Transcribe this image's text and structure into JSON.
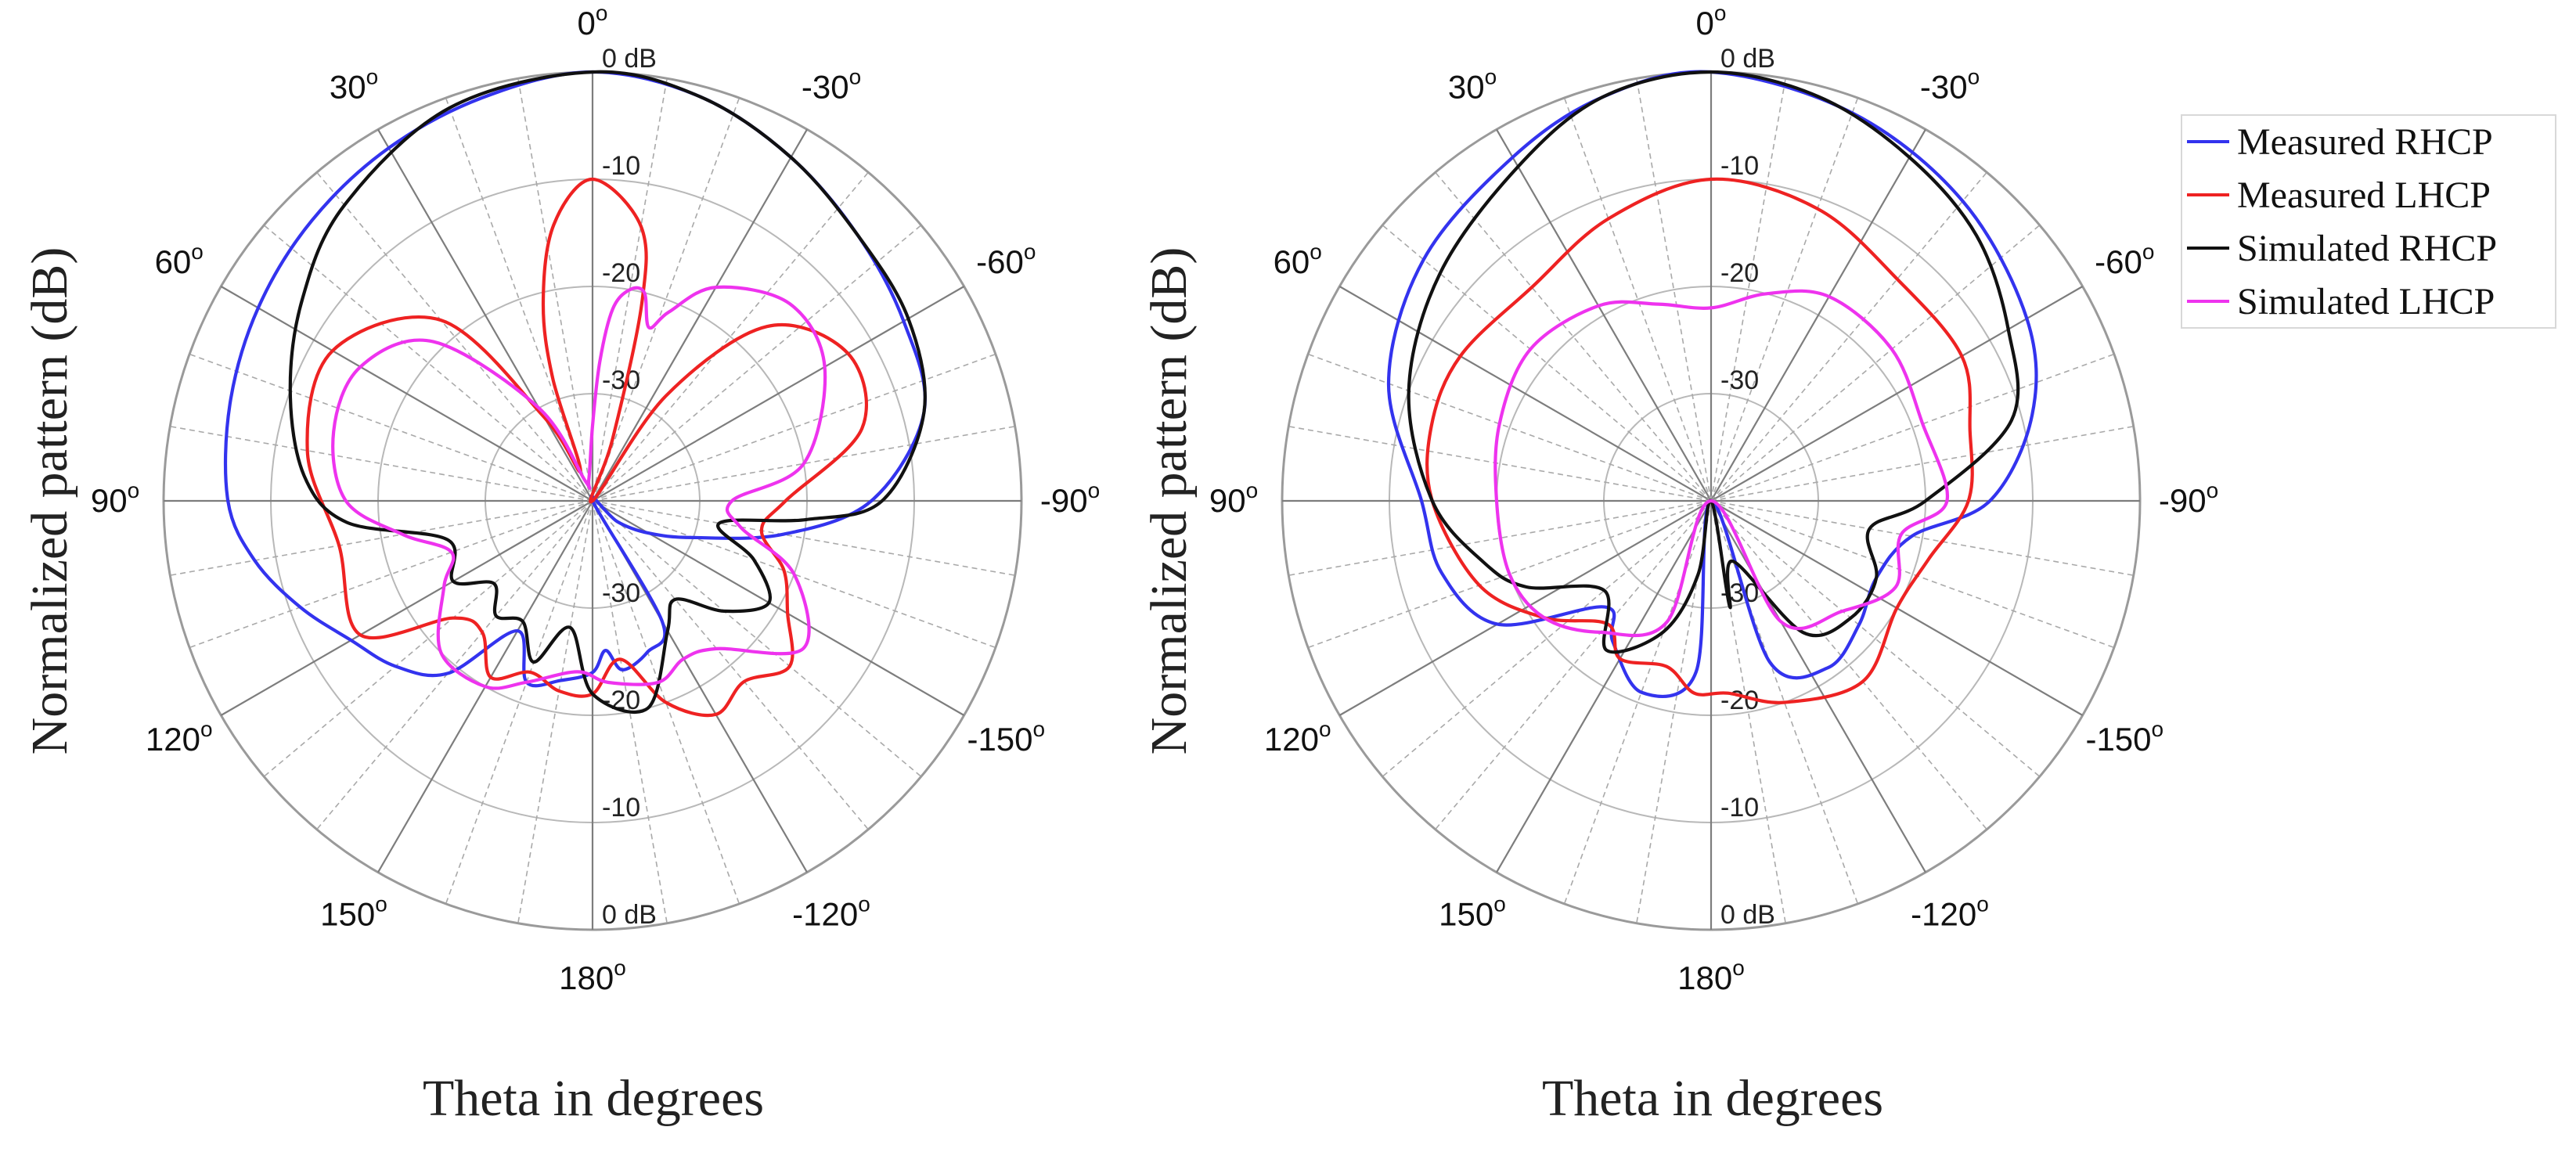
{
  "chart_data": [
    {
      "type": "polar-line",
      "panel": "left",
      "ylabel": "Normalized pattern (dB)",
      "xlabel": "Theta in degrees",
      "r_range_db": [
        -40,
        0
      ],
      "radial_ticks_upper": [
        "0 dB",
        "-10",
        "-20",
        "-30"
      ],
      "radial_ticks_lower": [
        "-30",
        "-20",
        "-10",
        "0 dB"
      ],
      "angle_labels": [
        {
          "deg": 0,
          "text": "0"
        },
        {
          "deg": 30,
          "text": "-30"
        },
        {
          "deg": 60,
          "text": "-60"
        },
        {
          "deg": 90,
          "text": "-90"
        },
        {
          "deg": 120,
          "text": "-150"
        },
        {
          "deg": 150,
          "text": "-120"
        },
        {
          "deg": 180,
          "text": "180"
        },
        {
          "deg": 210,
          "text": "150"
        },
        {
          "deg": 240,
          "text": "120"
        },
        {
          "deg": 270,
          "text": "90"
        },
        {
          "deg": 300,
          "text": "60"
        },
        {
          "deg": 330,
          "text": "30"
        }
      ],
      "series": [
        {
          "name": "Measured RHCP",
          "color": "#3333ee",
          "points": [
            [
              0,
              0
            ],
            [
              15,
              -1
            ],
            [
              30,
              -3
            ],
            [
              45,
              -5
            ],
            [
              60,
              -6.5
            ],
            [
              75,
              -8
            ],
            [
              90,
              -14
            ],
            [
              100,
              -22
            ],
            [
              110,
              -30
            ],
            [
              120,
              -34
            ],
            [
              130,
              -37
            ],
            [
              140,
              -40
            ],
            [
              150,
              -27
            ],
            [
              160,
              -25
            ],
            [
              170,
              -24
            ],
            [
              175,
              -26
            ],
            [
              180,
              -24
            ],
            [
              190,
              -23
            ],
            [
              200,
              -22
            ],
            [
              210,
              -26
            ],
            [
              220,
              -19
            ],
            [
              230,
              -16
            ],
            [
              240,
              -14
            ],
            [
              250,
              -11
            ],
            [
              260,
              -8
            ],
            [
              270,
              -6
            ],
            [
              285,
              -5
            ],
            [
              300,
              -4
            ],
            [
              315,
              -3
            ],
            [
              330,
              -2
            ],
            [
              345,
              -1
            ],
            [
              360,
              0
            ]
          ]
        },
        {
          "name": "Measured LHCP",
          "color": "#ee2222",
          "points": [
            [
              0,
              -10
            ],
            [
              10,
              -14
            ],
            [
              14,
              -21
            ],
            [
              18,
              -34
            ],
            [
              25,
              -40
            ],
            [
              35,
              -28
            ],
            [
              45,
              -17
            ],
            [
              60,
              -12.5
            ],
            [
              75,
              -14
            ],
            [
              90,
              -22
            ],
            [
              100,
              -24
            ],
            [
              110,
              -21
            ],
            [
              120,
              -19
            ],
            [
              130,
              -16
            ],
            [
              140,
              -18
            ],
            [
              150,
              -17
            ],
            [
              160,
              -20
            ],
            [
              170,
              -25
            ],
            [
              180,
              -22
            ],
            [
              190,
              -22
            ],
            [
              200,
              -23
            ],
            [
              210,
              -21
            ],
            [
              220,
              -24
            ],
            [
              230,
              -23
            ],
            [
              240,
              -15
            ],
            [
              260,
              -16
            ],
            [
              280,
              -13
            ],
            [
              300,
              -12
            ],
            [
              320,
              -18
            ],
            [
              330,
              -31
            ],
            [
              338,
              -37
            ],
            [
              342,
              -28
            ],
            [
              346,
              -21
            ],
            [
              352,
              -14
            ],
            [
              360,
              -10
            ]
          ]
        },
        {
          "name": "Simulated RHCP",
          "color": "#111111",
          "points": [
            [
              0,
              0
            ],
            [
              15,
              -1
            ],
            [
              30,
              -3
            ],
            [
              45,
              -5
            ],
            [
              60,
              -6
            ],
            [
              75,
              -8
            ],
            [
              90,
              -13
            ],
            [
              95,
              -20
            ],
            [
              100,
              -28
            ],
            [
              110,
              -24
            ],
            [
              120,
              -21
            ],
            [
              130,
              -24
            ],
            [
              140,
              -28
            ],
            [
              150,
              -26
            ],
            [
              165,
              -20
            ],
            [
              180,
              -22
            ],
            [
              190,
              -28
            ],
            [
              200,
              -24
            ],
            [
              210,
              -27
            ],
            [
              220,
              -26
            ],
            [
              230,
              -28
            ],
            [
              240,
              -25
            ],
            [
              255,
              -26
            ],
            [
              265,
              -17
            ],
            [
              275,
              -13
            ],
            [
              290,
              -10
            ],
            [
              305,
              -7
            ],
            [
              320,
              -4
            ],
            [
              340,
              -1
            ],
            [
              360,
              0
            ]
          ]
        },
        {
          "name": "Simulated LHCP",
          "color": "#ee33ee",
          "points": [
            [
              0,
              -33
            ],
            [
              3,
              -27
            ],
            [
              6,
              -22
            ],
            [
              10,
              -20
            ],
            [
              14,
              -20
            ],
            [
              18,
              -23
            ],
            [
              22,
              -21
            ],
            [
              30,
              -17
            ],
            [
              45,
              -14
            ],
            [
              60,
              -15
            ],
            [
              80,
              -20
            ],
            [
              90,
              -27
            ],
            [
              100,
              -26
            ],
            [
              110,
              -20
            ],
            [
              125,
              -16
            ],
            [
              140,
              -22
            ],
            [
              150,
              -23
            ],
            [
              160,
              -22
            ],
            [
              175,
              -23
            ],
            [
              185,
              -24
            ],
            [
              200,
              -22
            ],
            [
              210,
              -20
            ],
            [
              225,
              -20
            ],
            [
              240,
              -24
            ],
            [
              250,
              -26
            ],
            [
              260,
              -22
            ],
            [
              270,
              -17
            ],
            [
              285,
              -15
            ],
            [
              300,
              -15
            ],
            [
              315,
              -19
            ],
            [
              330,
              -30
            ],
            [
              340,
              -38
            ],
            [
              350,
              -38
            ],
            [
              360,
              -33
            ]
          ]
        }
      ]
    },
    {
      "type": "polar-line",
      "panel": "right",
      "ylabel": "Normalized pattern (dB)",
      "xlabel": "Theta in degrees",
      "r_range_db": [
        -40,
        0
      ],
      "radial_ticks_upper": [
        "0 dB",
        "-10",
        "-20",
        "-30"
      ],
      "radial_ticks_lower": [
        "-30",
        "-20",
        "-10",
        "0 dB"
      ],
      "angle_labels": [
        {
          "deg": 0,
          "text": "0"
        },
        {
          "deg": 30,
          "text": "-30"
        },
        {
          "deg": 60,
          "text": "-60"
        },
        {
          "deg": 90,
          "text": "-90"
        },
        {
          "deg": 120,
          "text": "-150"
        },
        {
          "deg": 150,
          "text": "-120"
        },
        {
          "deg": 180,
          "text": "180"
        },
        {
          "deg": 210,
          "text": "150"
        },
        {
          "deg": 240,
          "text": "120"
        },
        {
          "deg": 270,
          "text": "90"
        },
        {
          "deg": 300,
          "text": "60"
        },
        {
          "deg": 330,
          "text": "30"
        }
      ],
      "series": [
        {
          "name": "Measured RHCP",
          "color": "#3333ee",
          "points": [
            [
              0,
              0
            ],
            [
              20,
              -1.5
            ],
            [
              40,
              -3.5
            ],
            [
              60,
              -6
            ],
            [
              75,
              -9
            ],
            [
              90,
              -14
            ],
            [
              100,
              -21
            ],
            [
              115,
              -23
            ],
            [
              130,
              -22
            ],
            [
              145,
              -21
            ],
            [
              160,
              -24
            ],
            [
              170,
              -40
            ],
            [
              185,
              -24
            ],
            [
              200,
              -21
            ],
            [
              215,
              -24
            ],
            [
              225,
              -26
            ],
            [
              240,
              -17
            ],
            [
              255,
              -14
            ],
            [
              270,
              -13
            ],
            [
              290,
              -8
            ],
            [
              310,
              -5
            ],
            [
              330,
              -3
            ],
            [
              345,
              -1
            ],
            [
              360,
              0
            ]
          ]
        },
        {
          "name": "Measured LHCP",
          "color": "#ee2222",
          "points": [
            [
              0,
              -10
            ],
            [
              20,
              -11
            ],
            [
              40,
              -13
            ],
            [
              60,
              -13
            ],
            [
              75,
              -15
            ],
            [
              90,
              -16
            ],
            [
              105,
              -19
            ],
            [
              120,
              -20
            ],
            [
              140,
              -18
            ],
            [
              160,
              -20
            ],
            [
              175,
              -22
            ],
            [
              185,
              -22
            ],
            [
              195,
              -24
            ],
            [
              210,
              -23
            ],
            [
              220,
              -25
            ],
            [
              235,
              -21
            ],
            [
              250,
              -17
            ],
            [
              270,
              -14
            ],
            [
              285,
              -13
            ],
            [
              300,
              -13
            ],
            [
              320,
              -14
            ],
            [
              340,
              -12
            ],
            [
              360,
              -10
            ]
          ]
        },
        {
          "name": "Simulated RHCP",
          "color": "#111111",
          "points": [
            [
              0,
              0
            ],
            [
              15,
              -1
            ],
            [
              30,
              -3
            ],
            [
              45,
              -5
            ],
            [
              60,
              -8
            ],
            [
              75,
              -11
            ],
            [
              90,
              -20
            ],
            [
              100,
              -25
            ],
            [
              115,
              -23
            ],
            [
              130,
              -23
            ],
            [
              145,
              -25
            ],
            [
              160,
              -34
            ],
            [
              170,
              -30
            ],
            [
              180,
              -40
            ],
            [
              190,
              -33
            ],
            [
              200,
              -27
            ],
            [
              215,
              -23
            ],
            [
              230,
              -27
            ],
            [
              245,
              -21
            ],
            [
              255,
              -18
            ],
            [
              270,
              -14
            ],
            [
              290,
              -10
            ],
            [
              310,
              -7
            ],
            [
              330,
              -4
            ],
            [
              345,
              -1
            ],
            [
              360,
              0
            ]
          ]
        },
        {
          "name": "Simulated LHCP",
          "color": "#ee33ee",
          "points": [
            [
              0,
              -22
            ],
            [
              15,
              -20
            ],
            [
              30,
              -18
            ],
            [
              50,
              -18
            ],
            [
              70,
              -19
            ],
            [
              90,
              -18
            ],
            [
              100,
              -22
            ],
            [
              115,
              -21
            ],
            [
              130,
              -24
            ],
            [
              150,
              -27
            ],
            [
              170,
              -40
            ],
            [
              200,
              -28
            ],
            [
              220,
              -24
            ],
            [
              235,
              -21
            ],
            [
              250,
              -20
            ],
            [
              270,
              -20
            ],
            [
              290,
              -19
            ],
            [
              310,
              -18
            ],
            [
              330,
              -19
            ],
            [
              345,
              -21
            ],
            [
              360,
              -22
            ]
          ]
        }
      ]
    }
  ]
}
